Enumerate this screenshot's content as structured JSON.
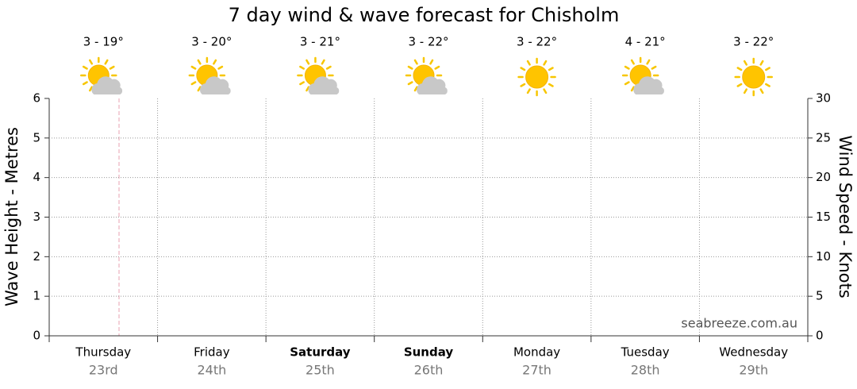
{
  "chart_data": {
    "type": "line",
    "title": "7 day wind & wave forecast for Chisholm",
    "categories": [
      "Thursday",
      "Friday",
      "Saturday",
      "Sunday",
      "Monday",
      "Tuesday",
      "Wednesday"
    ],
    "dates": [
      "23rd",
      "24th",
      "25th",
      "26th",
      "27th",
      "28th",
      "29th"
    ],
    "temperatures": [
      "3 - 19°",
      "3 - 20°",
      "3 - 21°",
      "3 - 22°",
      "3 - 22°",
      "4 - 21°",
      "3 - 22°"
    ],
    "icons": [
      "partly-cloudy",
      "partly-cloudy",
      "partly-cloudy",
      "partly-cloudy",
      "sunny",
      "partly-cloudy",
      "sunny"
    ],
    "bold": [
      false,
      false,
      true,
      true,
      false,
      false,
      false
    ],
    "ylabel": "Wave Height - Metres",
    "y2label": "Wind Speed - Knots",
    "ylim": [
      0,
      6
    ],
    "yticks": [
      0,
      1,
      2,
      3,
      4,
      5,
      6
    ],
    "y2lim": [
      0,
      30
    ],
    "y2ticks": [
      0,
      5,
      10,
      15,
      20,
      25,
      30
    ],
    "grid": true,
    "watermark": "seabreeze.com.au"
  }
}
